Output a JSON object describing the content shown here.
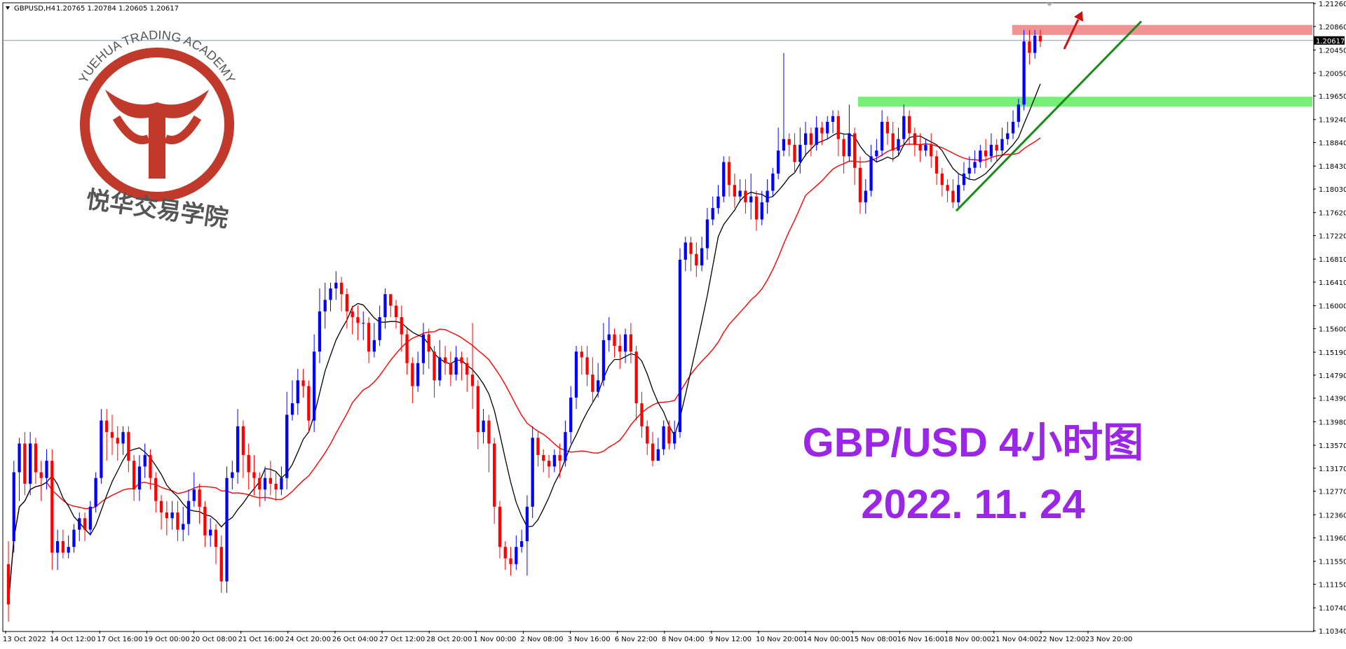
{
  "header": {
    "symbol": "GBPUSD,H4",
    "ohlc": "1.20765 1.20784 1.20605 1.20617"
  },
  "logo": {
    "arc_text": "YUEHUA TRADING ACADEMY",
    "cn_text": "悦华交易学院",
    "color": "#c0392b"
  },
  "overlay": {
    "title": "GBP/USD 4小时图",
    "date": "2022. 11. 24",
    "color": "#9b26e8"
  },
  "chart_data": {
    "type": "candlestick",
    "symbol": "GBPUSD",
    "timeframe": "H4",
    "y_tick_labels": [
      "1.21260",
      "1.20860",
      "1.20450",
      "1.20050",
      "1.19650",
      "1.19240",
      "1.18840",
      "1.18430",
      "1.18030",
      "1.17620",
      "1.17220",
      "1.16810",
      "1.16410",
      "1.16000",
      "1.15600",
      "1.15190",
      "1.14790",
      "1.14390",
      "1.13980",
      "1.13570",
      "1.13170",
      "1.12770",
      "1.12360",
      "1.11960",
      "1.11550",
      "1.11150",
      "1.10740",
      "1.10340"
    ],
    "ylim": [
      1.1034,
      1.2126
    ],
    "x_tick_labels": [
      "13 Oct 2022",
      "14 Oct 12:00",
      "17 Oct 16:00",
      "19 Oct 00:00",
      "20 Oct 08:00",
      "21 Oct 16:00",
      "24 Oct 20:00",
      "26 Oct 04:00",
      "27 Oct 12:00",
      "28 Oct 20:00",
      "1 Nov 00:00",
      "2 Nov 08:00",
      "3 Nov 16:00",
      "6 Nov 22:00",
      "8 Nov 04:00",
      "9 Nov 12:00",
      "10 Nov 20:00",
      "14 Nov 00:00",
      "15 Nov 08:00",
      "16 Nov 16:00",
      "18 Nov 00:00",
      "21 Nov 04:00",
      "22 Nov 12:00",
      "23 Nov 20:00"
    ],
    "current_price": "1.20617",
    "bull_color": "#0000ff",
    "bear_color": "#ff0000",
    "ma_fast_color": "#000000",
    "ma_slow_color": "#ff0000",
    "candles": [
      [
        1.115,
        1.108,
        1.105,
        1.119
      ],
      [
        1.119,
        1.131,
        1.117,
        1.133
      ],
      [
        1.131,
        1.136,
        1.126,
        1.137
      ],
      [
        1.136,
        1.129,
        1.127,
        1.138
      ],
      [
        1.129,
        1.136,
        1.127,
        1.138
      ],
      [
        1.136,
        1.131,
        1.129,
        1.137
      ],
      [
        1.131,
        1.13,
        1.126,
        1.133
      ],
      [
        1.13,
        1.133,
        1.128,
        1.135
      ],
      [
        1.133,
        1.117,
        1.114,
        1.135
      ],
      [
        1.117,
        1.119,
        1.114,
        1.121
      ],
      [
        1.119,
        1.117,
        1.116,
        1.121
      ],
      [
        1.117,
        1.118,
        1.116,
        1.12
      ],
      [
        1.118,
        1.121,
        1.117,
        1.122
      ],
      [
        1.121,
        1.123,
        1.119,
        1.124
      ],
      [
        1.123,
        1.121,
        1.119,
        1.124
      ],
      [
        1.121,
        1.125,
        1.12,
        1.126
      ],
      [
        1.125,
        1.13,
        1.124,
        1.131
      ],
      [
        1.13,
        1.14,
        1.129,
        1.142
      ],
      [
        1.14,
        1.138,
        1.133,
        1.142
      ],
      [
        1.138,
        1.137,
        1.134,
        1.141
      ],
      [
        1.137,
        1.136,
        1.133,
        1.139
      ],
      [
        1.136,
        1.138,
        1.134,
        1.139
      ],
      [
        1.138,
        1.133,
        1.131,
        1.139
      ],
      [
        1.133,
        1.128,
        1.126,
        1.134
      ],
      [
        1.128,
        1.132,
        1.126,
        1.134
      ],
      [
        1.132,
        1.134,
        1.13,
        1.136
      ],
      [
        1.134,
        1.13,
        1.128,
        1.135
      ],
      [
        1.13,
        1.126,
        1.124,
        1.131
      ],
      [
        1.126,
        1.124,
        1.121,
        1.127
      ],
      [
        1.124,
        1.123,
        1.12,
        1.126
      ],
      [
        1.123,
        1.124,
        1.121,
        1.126
      ],
      [
        1.124,
        1.121,
        1.119,
        1.126
      ],
      [
        1.121,
        1.122,
        1.119,
        1.125
      ],
      [
        1.122,
        1.126,
        1.12,
        1.128
      ],
      [
        1.126,
        1.128,
        1.125,
        1.131
      ],
      [
        1.128,
        1.125,
        1.122,
        1.129
      ],
      [
        1.125,
        1.12,
        1.118,
        1.126
      ],
      [
        1.12,
        1.121,
        1.118,
        1.123
      ],
      [
        1.121,
        1.118,
        1.115,
        1.122
      ],
      [
        1.118,
        1.112,
        1.11,
        1.12
      ],
      [
        1.112,
        1.13,
        1.11,
        1.132
      ],
      [
        1.13,
        1.131,
        1.128,
        1.133
      ],
      [
        1.131,
        1.139,
        1.129,
        1.142
      ],
      [
        1.139,
        1.134,
        1.13,
        1.14
      ],
      [
        1.134,
        1.131,
        1.128,
        1.136
      ],
      [
        1.131,
        1.13,
        1.127,
        1.134
      ],
      [
        1.13,
        1.128,
        1.125,
        1.131
      ],
      [
        1.128,
        1.13,
        1.126,
        1.132
      ],
      [
        1.13,
        1.129,
        1.127,
        1.133
      ],
      [
        1.129,
        1.128,
        1.126,
        1.131
      ],
      [
        1.128,
        1.13,
        1.127,
        1.132
      ],
      [
        1.13,
        1.141,
        1.128,
        1.145
      ],
      [
        1.141,
        1.143,
        1.14,
        1.147
      ],
      [
        1.143,
        1.147,
        1.141,
        1.149
      ],
      [
        1.147,
        1.146,
        1.144,
        1.149
      ],
      [
        1.146,
        1.14,
        1.138,
        1.147
      ],
      [
        1.14,
        1.152,
        1.138,
        1.155
      ],
      [
        1.152,
        1.159,
        1.15,
        1.163
      ],
      [
        1.159,
        1.161,
        1.156,
        1.164
      ],
      [
        1.161,
        1.163,
        1.159,
        1.164
      ],
      [
        1.163,
        1.164,
        1.161,
        1.166
      ],
      [
        1.164,
        1.162,
        1.159,
        1.165
      ],
      [
        1.162,
        1.159,
        1.156,
        1.163
      ],
      [
        1.159,
        1.158,
        1.155,
        1.16
      ],
      [
        1.158,
        1.157,
        1.154,
        1.16
      ],
      [
        1.157,
        1.157,
        1.154,
        1.159
      ],
      [
        1.157,
        1.152,
        1.15,
        1.158
      ],
      [
        1.152,
        1.154,
        1.151,
        1.157
      ],
      [
        1.154,
        1.158,
        1.153,
        1.16
      ],
      [
        1.158,
        1.162,
        1.156,
        1.163
      ],
      [
        1.162,
        1.16,
        1.158,
        1.162
      ],
      [
        1.16,
        1.158,
        1.156,
        1.161
      ],
      [
        1.158,
        1.155,
        1.152,
        1.16
      ],
      [
        1.155,
        1.15,
        1.148,
        1.156
      ],
      [
        1.15,
        1.146,
        1.143,
        1.151
      ],
      [
        1.146,
        1.15,
        1.145,
        1.152
      ],
      [
        1.15,
        1.155,
        1.148,
        1.157
      ],
      [
        1.155,
        1.152,
        1.149,
        1.156
      ],
      [
        1.152,
        1.147,
        1.144,
        1.153
      ],
      [
        1.147,
        1.151,
        1.146,
        1.154
      ],
      [
        1.151,
        1.15,
        1.148,
        1.153
      ],
      [
        1.15,
        1.148,
        1.146,
        1.152
      ],
      [
        1.148,
        1.151,
        1.147,
        1.153
      ],
      [
        1.151,
        1.15,
        1.147,
        1.152
      ],
      [
        1.15,
        1.148,
        1.145,
        1.151
      ],
      [
        1.148,
        1.146,
        1.142,
        1.157
      ],
      [
        1.146,
        1.138,
        1.135,
        1.147
      ],
      [
        1.138,
        1.14,
        1.136,
        1.142
      ],
      [
        1.14,
        1.136,
        1.131,
        1.141
      ],
      [
        1.136,
        1.125,
        1.122,
        1.137
      ],
      [
        1.125,
        1.118,
        1.116,
        1.126
      ],
      [
        1.118,
        1.116,
        1.114,
        1.119
      ],
      [
        1.116,
        1.115,
        1.113,
        1.118
      ],
      [
        1.115,
        1.118,
        1.114,
        1.12
      ],
      [
        1.118,
        1.119,
        1.117,
        1.121
      ],
      [
        1.119,
        1.125,
        1.113,
        1.127
      ],
      [
        1.125,
        1.137,
        1.123,
        1.139
      ],
      [
        1.137,
        1.134,
        1.132,
        1.138
      ],
      [
        1.134,
        1.133,
        1.131,
        1.135
      ],
      [
        1.133,
        1.132,
        1.13,
        1.134
      ],
      [
        1.132,
        1.134,
        1.131,
        1.135
      ],
      [
        1.134,
        1.133,
        1.13,
        1.136
      ],
      [
        1.133,
        1.138,
        1.132,
        1.14
      ],
      [
        1.138,
        1.144,
        1.136,
        1.146
      ],
      [
        1.144,
        1.152,
        1.142,
        1.153
      ],
      [
        1.152,
        1.151,
        1.148,
        1.153
      ],
      [
        1.151,
        1.148,
        1.146,
        1.153
      ],
      [
        1.148,
        1.145,
        1.143,
        1.151
      ],
      [
        1.145,
        1.147,
        1.144,
        1.15
      ],
      [
        1.147,
        1.154,
        1.146,
        1.157
      ],
      [
        1.154,
        1.155,
        1.152,
        1.158
      ],
      [
        1.155,
        1.153,
        1.151,
        1.156
      ],
      [
        1.153,
        1.152,
        1.149,
        1.155
      ],
      [
        1.152,
        1.155,
        1.15,
        1.156
      ],
      [
        1.155,
        1.152,
        1.15,
        1.157
      ],
      [
        1.152,
        1.143,
        1.14,
        1.153
      ],
      [
        1.143,
        1.139,
        1.137,
        1.145
      ],
      [
        1.139,
        1.136,
        1.134,
        1.14
      ],
      [
        1.136,
        1.133,
        1.132,
        1.138
      ],
      [
        1.133,
        1.135,
        1.133,
        1.137
      ],
      [
        1.135,
        1.139,
        1.134,
        1.14
      ],
      [
        1.139,
        1.136,
        1.135,
        1.14
      ],
      [
        1.136,
        1.138,
        1.135,
        1.14
      ],
      [
        1.138,
        1.168,
        1.137,
        1.17
      ],
      [
        1.168,
        1.171,
        1.166,
        1.172
      ],
      [
        1.171,
        1.169,
        1.166,
        1.172
      ],
      [
        1.169,
        1.167,
        1.165,
        1.171
      ],
      [
        1.167,
        1.17,
        1.166,
        1.172
      ],
      [
        1.17,
        1.175,
        1.168,
        1.177
      ],
      [
        1.175,
        1.177,
        1.174,
        1.179
      ],
      [
        1.177,
        1.179,
        1.176,
        1.181
      ],
      [
        1.179,
        1.185,
        1.178,
        1.186
      ],
      [
        1.185,
        1.181,
        1.179,
        1.186
      ],
      [
        1.181,
        1.179,
        1.177,
        1.183
      ],
      [
        1.179,
        1.18,
        1.178,
        1.182
      ],
      [
        1.18,
        1.178,
        1.176,
        1.182
      ],
      [
        1.178,
        1.179,
        1.175,
        1.183
      ],
      [
        1.179,
        1.175,
        1.173,
        1.18
      ],
      [
        1.175,
        1.178,
        1.174,
        1.18
      ],
      [
        1.178,
        1.18,
        1.176,
        1.182
      ],
      [
        1.18,
        1.183,
        1.179,
        1.184
      ],
      [
        1.183,
        1.187,
        1.182,
        1.191
      ],
      [
        1.187,
        1.189,
        1.186,
        1.204
      ],
      [
        1.189,
        1.188,
        1.186,
        1.19
      ],
      [
        1.188,
        1.185,
        1.183,
        1.19
      ],
      [
        1.185,
        1.188,
        1.183,
        1.191
      ],
      [
        1.188,
        1.19,
        1.186,
        1.192
      ],
      [
        1.19,
        1.188,
        1.186,
        1.191
      ],
      [
        1.188,
        1.191,
        1.187,
        1.193
      ],
      [
        1.191,
        1.19,
        1.188,
        1.192
      ],
      [
        1.19,
        1.192,
        1.189,
        1.193
      ],
      [
        1.192,
        1.193,
        1.19,
        1.194
      ],
      [
        1.193,
        1.189,
        1.186,
        1.194
      ],
      [
        1.189,
        1.186,
        1.183,
        1.19
      ],
      [
        1.186,
        1.19,
        1.185,
        1.195
      ],
      [
        1.19,
        1.184,
        1.181,
        1.191
      ],
      [
        1.184,
        1.178,
        1.176,
        1.186
      ],
      [
        1.178,
        1.18,
        1.176,
        1.182
      ],
      [
        1.18,
        1.186,
        1.179,
        1.188
      ],
      [
        1.186,
        1.187,
        1.185,
        1.189
      ],
      [
        1.187,
        1.192,
        1.186,
        1.194
      ],
      [
        1.192,
        1.19,
        1.188,
        1.193
      ],
      [
        1.19,
        1.187,
        1.185,
        1.192
      ],
      [
        1.187,
        1.189,
        1.186,
        1.191
      ],
      [
        1.189,
        1.193,
        1.188,
        1.195
      ],
      [
        1.193,
        1.19,
        1.188,
        1.194
      ],
      [
        1.19,
        1.188,
        1.186,
        1.191
      ],
      [
        1.188,
        1.187,
        1.185,
        1.19
      ],
      [
        1.187,
        1.188,
        1.186,
        1.189
      ],
      [
        1.188,
        1.186,
        1.184,
        1.19
      ],
      [
        1.186,
        1.183,
        1.181,
        1.187
      ],
      [
        1.183,
        1.181,
        1.179,
        1.184
      ],
      [
        1.181,
        1.18,
        1.178,
        1.182
      ],
      [
        1.18,
        1.178,
        1.177,
        1.182
      ],
      [
        1.178,
        1.181,
        1.177,
        1.183
      ],
      [
        1.181,
        1.183,
        1.18,
        1.185
      ],
      [
        1.183,
        1.184,
        1.182,
        1.186
      ],
      [
        1.184,
        1.185,
        1.183,
        1.187
      ],
      [
        1.185,
        1.187,
        1.184,
        1.188
      ],
      [
        1.187,
        1.186,
        1.184,
        1.189
      ],
      [
        1.186,
        1.188,
        1.185,
        1.19
      ],
      [
        1.188,
        1.187,
        1.185,
        1.189
      ],
      [
        1.187,
        1.189,
        1.186,
        1.191
      ],
      [
        1.189,
        1.19,
        1.188,
        1.192
      ],
      [
        1.19,
        1.192,
        1.189,
        1.194
      ],
      [
        1.192,
        1.195,
        1.191,
        1.196
      ],
      [
        1.195,
        1.206,
        1.194,
        1.208
      ],
      [
        1.206,
        1.204,
        1.202,
        1.208
      ],
      [
        1.204,
        1.207,
        1.203,
        1.208
      ],
      [
        1.207,
        1.206,
        1.205,
        1.208
      ]
    ],
    "annotations": {
      "resistance_zone": {
        "y_low": 1.2075,
        "y_high": 1.2085,
        "color": "#f08080"
      },
      "support_zone": {
        "y_low": 1.195,
        "y_high": 1.196,
        "color": "#66ee66"
      },
      "trendline_color": "#1a8a1a",
      "arrow_color": "#cc1111",
      "current_price_line": 1.20617
    }
  }
}
